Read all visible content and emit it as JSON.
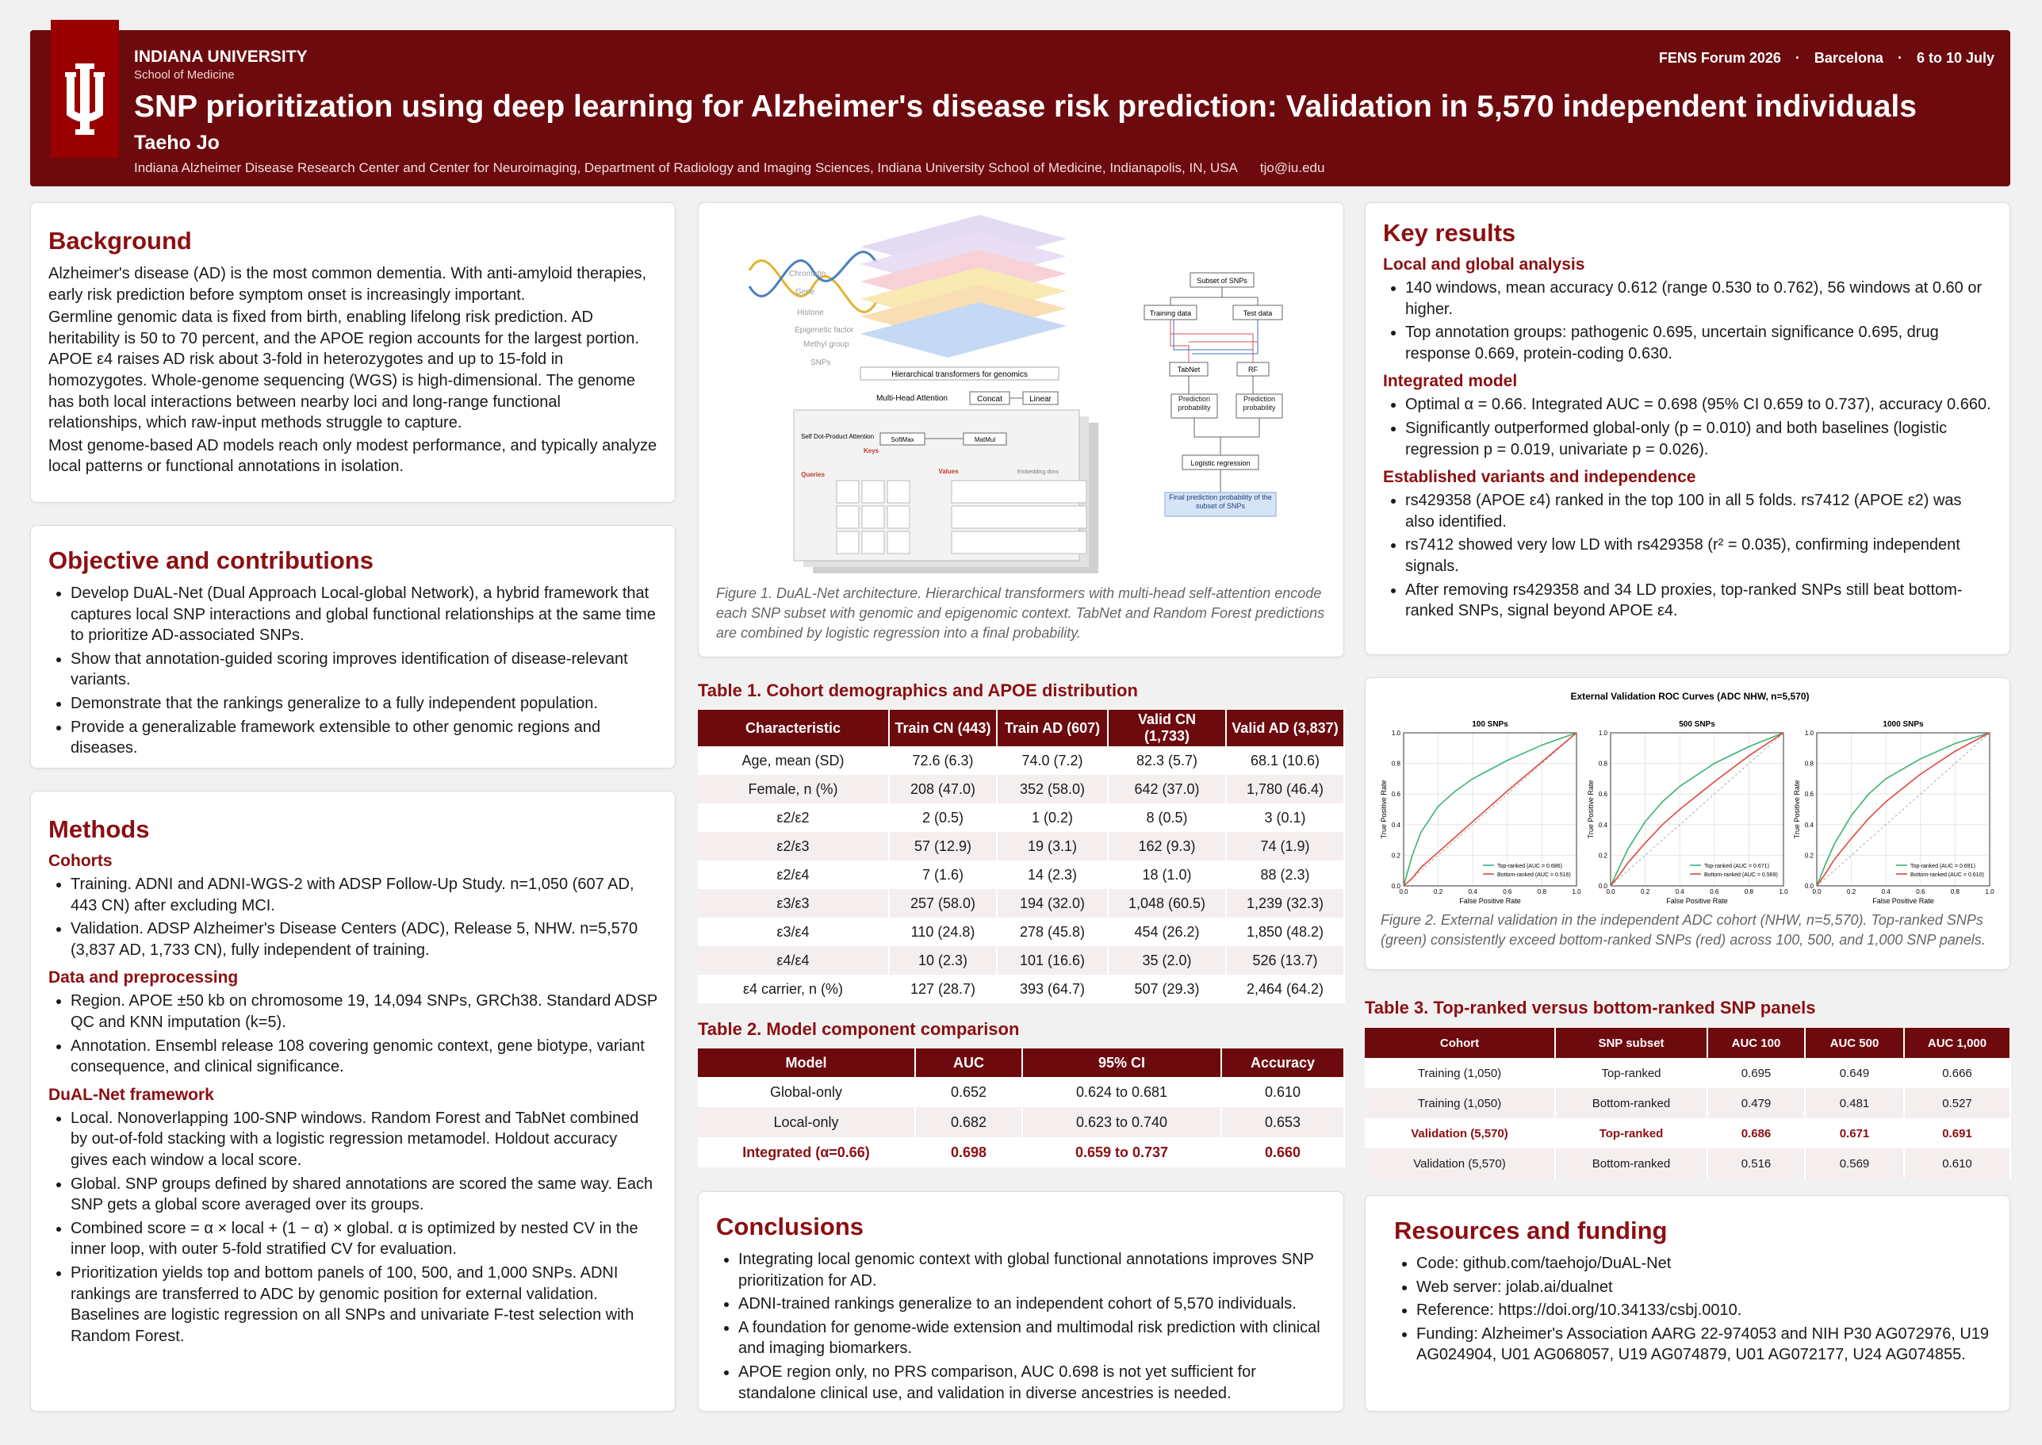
{
  "header": {
    "university": "INDIANA UNIVERSITY",
    "school": "School of Medicine",
    "event": "FENS Forum 2026",
    "city": "Barcelona",
    "dates": "6 to 10 July",
    "title": "SNP prioritization using deep learning for Alzheimer's disease risk prediction: Validation in 5,570 independent individuals",
    "author": "Taeho Jo",
    "affiliation": "Indiana Alzheimer Disease Research Center and Center for Neuroimaging, Department of Radiology and Imaging Sciences, Indiana University School of Medicine, Indianapolis, IN, USA",
    "email": "tjo@iu.edu"
  },
  "background": {
    "heading": "Background",
    "paragraphs": [
      "Alzheimer's disease (AD) is the most common dementia. With anti-amyloid therapies, early risk prediction before symptom onset is increasingly important.",
      "Germline genomic data is fixed from birth, enabling lifelong risk prediction. AD heritability is 50 to 70 percent, and the APOE region accounts for the largest portion. APOE ε4 raises AD risk about 3-fold in heterozygotes and up to 15-fold in homozygotes. Whole-genome sequencing (WGS) is high-dimensional. The genome has both local interactions between nearby loci and long-range functional relationships, which raw-input methods struggle to capture.",
      "Most genome-based AD models reach only modest performance, and typically analyze local patterns or functional annotations in isolation."
    ]
  },
  "objective": {
    "heading": "Objective and contributions",
    "items": [
      "Develop DuAL-Net (Dual Approach Local-global Network), a hybrid framework that captures local SNP interactions and global functional relationships at the same time to prioritize AD-associated SNPs.",
      "Show that annotation-guided scoring improves identification of disease-relevant variants.",
      "Demonstrate that the rankings generalize to a fully independent population.",
      "Provide a generalizable framework extensible to other genomic regions and diseases."
    ]
  },
  "methods": {
    "heading": "Methods",
    "sections": [
      {
        "heading": "Cohorts",
        "items": [
          "Training. ADNI and ADNI-WGS-2 with ADSP Follow-Up Study. n=1,050 (607 AD, 443 CN) after excluding MCI.",
          "Validation. ADSP Alzheimer's Disease Centers (ADC), Release 5, NHW. n=5,570 (3,837 AD, 1,733 CN), fully independent of training."
        ]
      },
      {
        "heading": "Data and preprocessing",
        "items": [
          "Region. APOE ±50 kb on chromosome 19, 14,094 SNPs, GRCh38. Standard ADSP QC and KNN imputation (k=5).",
          "Annotation. Ensembl release 108 covering genomic context, gene biotype, variant consequence, and clinical significance."
        ]
      },
      {
        "heading": "DuAL-Net framework",
        "items": [
          "Local. Nonoverlapping 100-SNP windows. Random Forest and TabNet combined by out-of-fold stacking with a logistic regression metamodel. Holdout accuracy gives each window a local score.",
          "Global. SNP groups defined by shared annotations are scored the same way. Each SNP gets a global score averaged over its groups.",
          "Combined score = α × local + (1 − α) × global. α is optimized by nested CV in the inner loop, with outer 5-fold stratified CV for evaluation.",
          "Prioritization yields top and bottom panels of 100, 500, and 1,000 SNPs. ADNI rankings are transferred to ADC by genomic position for external validation. Baselines are logistic regression on all SNPs and univariate F-test selection with Random Forest."
        ]
      }
    ]
  },
  "figure1": {
    "layers": [
      "Chromatin",
      "Gene",
      "Histone",
      "Epigenetic factor",
      "Methyl group",
      "SNPs"
    ],
    "hierarchical": "Hierarchical transformers for genomics",
    "multihead": "Multi-Head Attention",
    "concat": "Concat",
    "linear": "Linear",
    "selfattn": "Self Dot-Product Attention",
    "softmax": "SoftMax",
    "matmul": "MatMul",
    "keys": "Keys",
    "queries": "Queries",
    "values": "Values",
    "embedding": "Embedding dims",
    "subset": "Subset of SNPs",
    "train": "Training data",
    "test": "Test data",
    "tabnet": "TabNet",
    "rf": "RF",
    "prob": "Prediction probability",
    "logreg": "Logistic regression",
    "final": "Final prediction probability of the subset of SNPs",
    "caption": "Figure 1. DuAL-Net architecture. Hierarchical transformers with multi-head self-attention encode each SNP subset with genomic and epigenomic context. TabNet and Random Forest predictions are combined by logistic regression into a final probability."
  },
  "table1": {
    "title": "Table 1. Cohort demographics and APOE distribution",
    "columns": [
      "Characteristic",
      "Train CN (443)",
      "Train AD (607)",
      "Valid CN (1,733)",
      "Valid AD (3,837)"
    ],
    "rows": [
      [
        "Age, mean (SD)",
        "72.6 (6.3)",
        "74.0 (7.2)",
        "82.3 (5.7)",
        "68.1 (10.6)"
      ],
      [
        "Female, n (%)",
        "208 (47.0)",
        "352 (58.0)",
        "642 (37.0)",
        "1,780 (46.4)"
      ],
      [
        "ε2/ε2",
        "2 (0.5)",
        "1 (0.2)",
        "8 (0.5)",
        "3 (0.1)"
      ],
      [
        "ε2/ε3",
        "57 (12.9)",
        "19 (3.1)",
        "162 (9.3)",
        "74 (1.9)"
      ],
      [
        "ε2/ε4",
        "7 (1.6)",
        "14 (2.3)",
        "18 (1.0)",
        "88 (2.3)"
      ],
      [
        "ε3/ε3",
        "257 (58.0)",
        "194 (32.0)",
        "1,048 (60.5)",
        "1,239 (32.3)"
      ],
      [
        "ε3/ε4",
        "110 (24.8)",
        "278 (45.8)",
        "454 (26.2)",
        "1,850 (48.2)"
      ],
      [
        "ε4/ε4",
        "10 (2.3)",
        "101 (16.6)",
        "35 (2.0)",
        "526 (13.7)"
      ],
      [
        "ε4 carrier, n (%)",
        "127 (28.7)",
        "393 (64.7)",
        "507 (29.3)",
        "2,464 (64.2)"
      ]
    ]
  },
  "table2": {
    "title": "Table 2. Model component comparison",
    "columns": [
      "Model",
      "AUC",
      "95% CI",
      "Accuracy"
    ],
    "rows": [
      [
        "Global-only",
        "0.652",
        "0.624 to 0.681",
        "0.610"
      ],
      [
        "Local-only",
        "0.682",
        "0.623 to 0.740",
        "0.653"
      ],
      [
        "Integrated (α=0.66)",
        "0.698",
        "0.659 to 0.737",
        "0.660"
      ]
    ],
    "highlight_row": 2
  },
  "conclusions": {
    "heading": "Conclusions",
    "items": [
      "Integrating local genomic context with global functional annotations improves SNP prioritization for AD.",
      "ADNI-trained rankings generalize to an independent cohort of 5,570 individuals.",
      "A foundation for genome-wide extension and multimodal risk prediction with clinical and imaging biomarkers.",
      "APOE region only, no PRS comparison, AUC 0.698 is not yet sufficient for standalone clinical use, and validation in diverse ancestries is needed."
    ]
  },
  "key_results": {
    "heading": "Key results",
    "sections": [
      {
        "heading": "Local and global analysis",
        "items": [
          "140 windows, mean accuracy 0.612 (range 0.530 to 0.762), 56 windows at 0.60 or higher.",
          "Top annotation groups: pathogenic 0.695, uncertain significance 0.695, drug response 0.669, protein-coding 0.630."
        ]
      },
      {
        "heading": "Integrated model",
        "items": [
          "Optimal α = 0.66. Integrated AUC = 0.698 (95% CI 0.659 to 0.737), accuracy 0.660.",
          "Significantly outperformed global-only (p = 0.010) and both baselines (logistic regression p = 0.019, univariate p = 0.026)."
        ]
      },
      {
        "heading": "Established variants and independence",
        "items": [
          "rs429358 (APOE ε4) ranked in the top 100 in all 5 folds. rs7412 (APOE ε2) was also identified.",
          "rs7412 showed very low LD with rs429358 (r² = 0.035), confirming independent signals.",
          "After removing rs429358 and 34 LD proxies, top-ranked SNPs still beat bottom-ranked SNPs, signal beyond APOE ε4."
        ]
      }
    ]
  },
  "figure2": {
    "title": "External Validation ROC Curves (ADC NHW, n=5,570)",
    "caption": "Figure 2. External validation in the independent ADC cohort (NHW, n=5,570). Top-ranked SNPs (green) consistently exceed bottom-ranked SNPs (red) across 100, 500, and 1,000 SNP panels."
  },
  "chart_data": [
    {
      "type": "line",
      "title": "100 SNPs",
      "xlabel": "False Positive Rate",
      "ylabel": "True Positive Rate",
      "xlim": [
        0,
        1
      ],
      "ylim": [
        0,
        1
      ],
      "xticks": [
        {
          "value": 0,
          "label": "0.0"
        },
        0.2,
        0.4,
        0.6,
        0.8,
        {
          "value": 1,
          "label": "1.0"
        }
      ],
      "yticks": [
        {
          "value": 0,
          "label": "0.0"
        },
        0.2,
        0.4,
        0.6,
        0.8,
        {
          "value": 1,
          "label": "1.0"
        }
      ],
      "grid": true,
      "x": [
        0,
        0.05,
        0.1,
        0.2,
        0.3,
        0.4,
        0.6,
        0.8,
        1
      ],
      "series": [
        {
          "name": "Top-ranked (AUC = 0.686)",
          "color": "#3cb371",
          "values": [
            0,
            0.2,
            0.35,
            0.52,
            0.62,
            0.7,
            0.82,
            0.92,
            1
          ]
        },
        {
          "name": "Bottom-ranked (AUC = 0.516)",
          "color": "#e0483e",
          "values": [
            0,
            0.05,
            0.12,
            0.22,
            0.32,
            0.42,
            0.62,
            0.81,
            1
          ]
        }
      ]
    },
    {
      "type": "line",
      "title": "500 SNPs",
      "xlabel": "False Positive Rate",
      "ylabel": "True Positive Rate",
      "xlim": [
        0,
        1
      ],
      "ylim": [
        0,
        1
      ],
      "xticks": [
        {
          "value": 0,
          "label": "0.0"
        },
        0.2,
        0.4,
        0.6,
        0.8,
        {
          "value": 1,
          "label": "1.0"
        }
      ],
      "yticks": [
        {
          "value": 0,
          "label": "0.0"
        },
        0.2,
        0.4,
        0.6,
        0.8,
        {
          "value": 1,
          "label": "1.0"
        }
      ],
      "grid": true,
      "x": [
        0,
        0.05,
        0.1,
        0.2,
        0.3,
        0.4,
        0.6,
        0.8,
        1
      ],
      "series": [
        {
          "name": "Top-ranked (AUC = 0.671)",
          "color": "#3cb371",
          "values": [
            0,
            0.12,
            0.24,
            0.42,
            0.55,
            0.65,
            0.8,
            0.91,
            1
          ]
        },
        {
          "name": "Bottom-ranked (AUC = 0.569)",
          "color": "#e0483e",
          "values": [
            0,
            0.07,
            0.15,
            0.28,
            0.4,
            0.5,
            0.68,
            0.85,
            1
          ]
        }
      ]
    },
    {
      "type": "line",
      "title": "1000 SNPs",
      "xlabel": "False Positive Rate",
      "ylabel": "True Positive Rate",
      "xlim": [
        0,
        1
      ],
      "ylim": [
        0,
        1
      ],
      "xticks": [
        {
          "value": 0,
          "label": "0.0"
        },
        0.2,
        0.4,
        0.6,
        0.8,
        {
          "value": 1,
          "label": "1.0"
        }
      ],
      "yticks": [
        {
          "value": 0,
          "label": "0.0"
        },
        0.2,
        0.4,
        0.6,
        0.8,
        {
          "value": 1,
          "label": "1.0"
        }
      ],
      "grid": true,
      "x": [
        0,
        0.05,
        0.1,
        0.2,
        0.3,
        0.4,
        0.6,
        0.8,
        1
      ],
      "series": [
        {
          "name": "Top-ranked (AUC = 0.691)",
          "color": "#3cb371",
          "values": [
            0,
            0.14,
            0.27,
            0.46,
            0.6,
            0.7,
            0.83,
            0.93,
            1
          ]
        },
        {
          "name": "Bottom-ranked (AUC = 0.610)",
          "color": "#e0483e",
          "values": [
            0,
            0.08,
            0.17,
            0.31,
            0.44,
            0.55,
            0.73,
            0.88,
            1
          ]
        }
      ]
    }
  ],
  "table3": {
    "title": "Table 3. Top-ranked versus bottom-ranked SNP panels",
    "columns": [
      "Cohort",
      "SNP subset",
      "AUC 100",
      "AUC 500",
      "AUC 1,000"
    ],
    "rows": [
      [
        "Training (1,050)",
        "Top-ranked",
        "0.695",
        "0.649",
        "0.666"
      ],
      [
        "Training (1,050)",
        "Bottom-ranked",
        "0.479",
        "0.481",
        "0.527"
      ],
      [
        "Validation (5,570)",
        "Top-ranked",
        "0.686",
        "0.671",
        "0.691"
      ],
      [
        "Validation (5,570)",
        "Bottom-ranked",
        "0.516",
        "0.569",
        "0.610"
      ]
    ],
    "highlight_row": 2
  },
  "resources": {
    "heading": "Resources and funding",
    "items": [
      "Code:  github.com/taehojo/DuAL-Net",
      "Web server:  jolab.ai/dualnet",
      "Reference:  https://doi.org/10.34133/csbj.0010.",
      "Funding:  Alzheimer's Association AARG 22-974053 and NIH P30 AG072976, U19 AG024904, U01 AG068057, U19 AG074879, U01 AG072177, U24 AG074855."
    ]
  }
}
